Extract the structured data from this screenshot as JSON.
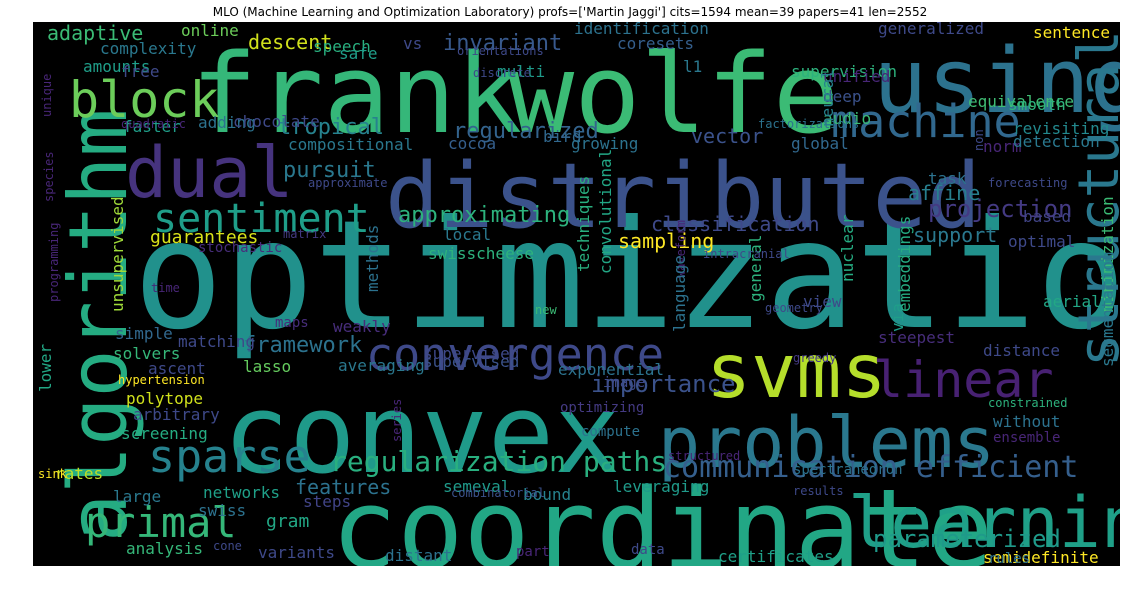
{
  "title": "MLO (Machine Learning and Optimization Laboratory) profs=['Martin Jaggi'] cits=1594 mean=39 papers=41 len=2552",
  "words": [
    {
      "t": "optimization",
      "c": "#21918c"
    },
    {
      "t": "convex",
      "c": "#1f9a8a"
    },
    {
      "t": "coordinate",
      "c": "#22a785"
    },
    {
      "t": "frank",
      "c": "#35b779"
    },
    {
      "t": "wolfe",
      "c": "#3bbb75"
    },
    {
      "t": "distributed",
      "c": "#3b528b"
    },
    {
      "t": "using",
      "c": "#2c728e"
    },
    {
      "t": "algorithm",
      "c": "#25ac82"
    },
    {
      "t": "svms",
      "c": "#b5de2b"
    },
    {
      "t": "dual",
      "c": "#46337e"
    },
    {
      "t": "problems",
      "c": "#2a788e"
    },
    {
      "t": "learning",
      "c": "#1fa088"
    },
    {
      "t": "structural",
      "c": "#2a788e"
    },
    {
      "t": "linear",
      "c": "#482173"
    },
    {
      "t": "convergence",
      "c": "#3e4989"
    },
    {
      "t": "machine",
      "c": "#31688e"
    },
    {
      "t": "block",
      "c": "#6ccd5a"
    },
    {
      "t": "sparse",
      "c": "#26828e"
    },
    {
      "t": "primal",
      "c": "#35b779"
    },
    {
      "t": "sentiment",
      "c": "#1f9e89"
    },
    {
      "t": "communication efficient",
      "c": "#355f8d"
    },
    {
      "t": "regularization paths",
      "c": "#29af7f"
    },
    {
      "t": "parameterized",
      "c": "#1f9a8a"
    },
    {
      "t": "importance",
      "c": "#3b528b"
    },
    {
      "t": "framework",
      "c": "#2c728e"
    },
    {
      "t": "approximating",
      "c": "#2db27d"
    },
    {
      "t": "projection",
      "c": "#443a83"
    },
    {
      "t": "regularized",
      "c": "#33638d"
    },
    {
      "t": "invariant",
      "c": "#38598c"
    },
    {
      "t": "tropical",
      "c": "#26828e"
    },
    {
      "t": "pursuit",
      "c": "#2a788e"
    },
    {
      "t": "features",
      "c": "#2c728e"
    },
    {
      "t": "sampling",
      "c": "#fde725"
    },
    {
      "t": "guarantees",
      "c": "#d8e219"
    },
    {
      "t": "classification",
      "c": "#3e4989"
    },
    {
      "t": "support",
      "c": "#2a788e"
    },
    {
      "t": "affine",
      "c": "#277f8e"
    },
    {
      "t": "vector",
      "c": "#3b528b"
    },
    {
      "t": "descent",
      "c": "#d0e11c"
    },
    {
      "t": "adaptive",
      "c": "#3bbb75"
    },
    {
      "t": "gram",
      "c": "#22a785"
    },
    {
      "t": "supervision",
      "c": "#2db27d"
    },
    {
      "t": "sentence",
      "c": "#fde725"
    },
    {
      "t": "revisiting",
      "c": "#23898e"
    },
    {
      "t": "equivalence",
      "c": "#3fbc73"
    },
    {
      "t": "leveraging",
      "c": "#1f9a8a"
    },
    {
      "t": "certificates",
      "c": "#1fa088"
    },
    {
      "t": "semidefinite",
      "c": "#fde725"
    },
    {
      "t": "exponential",
      "c": "#2c728e"
    },
    {
      "t": "averaging",
      "c": "#2a788e"
    },
    {
      "t": "supervised",
      "c": "#3b528b"
    },
    {
      "t": "polytope",
      "c": "#d0e11c"
    },
    {
      "t": "arbitrary",
      "c": "#3e4989"
    },
    {
      "t": "analysis",
      "c": "#35b779"
    },
    {
      "t": "variants",
      "c": "#3e4989"
    },
    {
      "t": "distant",
      "c": "#2c728e"
    },
    {
      "t": "rates",
      "c": "#bddf26"
    },
    {
      "t": "large",
      "c": "#2a788e"
    },
    {
      "t": "networks",
      "c": "#1fa088"
    },
    {
      "t": "steps",
      "c": "#414487"
    },
    {
      "t": "swiss",
      "c": "#2c728e"
    },
    {
      "t": "bound",
      "c": "#26828e"
    },
    {
      "t": "semeval",
      "c": "#1f9a8a"
    },
    {
      "t": "combinatorial",
      "c": "#3b528b"
    },
    {
      "t": "lasso",
      "c": "#65cb5e"
    },
    {
      "t": "solvers",
      "c": "#35b779"
    },
    {
      "t": "simple",
      "c": "#31688e"
    },
    {
      "t": "matching",
      "c": "#3e4989"
    },
    {
      "t": "ascent",
      "c": "#3e4989"
    },
    {
      "t": "lower",
      "c": "#22a785"
    },
    {
      "t": "screening",
      "c": "#25ac82"
    },
    {
      "t": "hypertension",
      "c": "#fde725"
    },
    {
      "t": "weakly",
      "c": "#472d7b"
    },
    {
      "t": "maps",
      "c": "#472d7b"
    },
    {
      "t": "time",
      "c": "#482677"
    },
    {
      "t": "programming",
      "c": "#482677"
    },
    {
      "t": "stochastic",
      "c": "#472d7b"
    },
    {
      "t": "matrix",
      "c": "#443a83"
    },
    {
      "t": "unsupervised",
      "c": "#a0da39"
    },
    {
      "t": "supervised",
      "c": "#3e4989"
    },
    {
      "t": "species",
      "c": "#482677"
    },
    {
      "t": "faster",
      "c": "#1f9e89"
    },
    {
      "t": "adding",
      "c": "#2c728e"
    },
    {
      "t": "chocolate",
      "c": "#3e4989"
    },
    {
      "t": "quadratic",
      "c": "#482677"
    },
    {
      "t": "unique",
      "c": "#482677"
    },
    {
      "t": "amounts",
      "c": "#1f9e89"
    },
    {
      "t": "free",
      "c": "#3e4989"
    },
    {
      "t": "complexity",
      "c": "#2a788e"
    },
    {
      "t": "online",
      "c": "#6ccd5a"
    },
    {
      "t": "speech",
      "c": "#29af7f"
    },
    {
      "t": "safe",
      "c": "#1f9e89"
    },
    {
      "t": "orientations",
      "c": "#3e4989"
    },
    {
      "t": "vs",
      "c": "#3e4989"
    },
    {
      "t": "identification",
      "c": "#2c728e"
    },
    {
      "t": "coresets",
      "c": "#355f8d"
    },
    {
      "t": "multi",
      "c": "#1f9a8a"
    },
    {
      "t": "l1",
      "c": "#2a788e"
    },
    {
      "t": "discrete",
      "c": "#3e4989"
    },
    {
      "t": "generalized",
      "c": "#3e4989"
    },
    {
      "t": "unified",
      "c": "#482677"
    },
    {
      "t": "deep",
      "c": "#3b528b"
    },
    {
      "t": "bird",
      "c": "#31688e"
    },
    {
      "t": "audio",
      "c": "#3bbb75"
    },
    {
      "t": "neural",
      "c": "#26828e"
    },
    {
      "t": "factorizations",
      "c": "#2c728e"
    },
    {
      "t": "cocoa",
      "c": "#355f8d"
    },
    {
      "t": "growing",
      "c": "#2c728e"
    },
    {
      "t": "global",
      "c": "#31688e"
    },
    {
      "t": "compositional",
      "c": "#2a788e"
    },
    {
      "t": "approximate",
      "c": "#3e4989"
    },
    {
      "t": "norm",
      "c": "#482677"
    },
    {
      "t": "non",
      "c": "#3e4989"
    },
    {
      "t": "smooth",
      "c": "#2db27d"
    },
    {
      "t": "detection",
      "c": "#2a788e"
    },
    {
      "t": "task",
      "c": "#2c728e"
    },
    {
      "t": "forecasting",
      "c": "#3e4989"
    },
    {
      "t": "based",
      "c": "#414487"
    },
    {
      "t": "local",
      "c": "#2a788e"
    },
    {
      "t": "swisscheese",
      "c": "#2db27d"
    },
    {
      "t": "convolutional",
      "c": "#22a785"
    },
    {
      "t": "techniques",
      "c": "#29af7f"
    },
    {
      "t": "methods",
      "c": "#2c728e"
    },
    {
      "t": "nuclear",
      "c": "#25ac82"
    },
    {
      "t": "general",
      "c": "#2db27d"
    },
    {
      "t": "waveform",
      "c": "#482677"
    },
    {
      "t": "intracranial",
      "c": "#3e4989"
    },
    {
      "t": "optimal",
      "c": "#3e4989"
    },
    {
      "t": "minimization",
      "c": "#3bbb75"
    },
    {
      "t": "segmentation",
      "c": "#2a788e"
    },
    {
      "t": "aerial",
      "c": "#22a785"
    },
    {
      "t": "geometry",
      "c": "#3e4989"
    },
    {
      "t": "view",
      "c": "#3e4989"
    },
    {
      "t": "via",
      "c": "#1f9e89"
    },
    {
      "t": "embeddings",
      "c": "#25ac82"
    },
    {
      "t": "language",
      "c": "#2c728e"
    },
    {
      "t": "new",
      "c": "#3bbb75"
    },
    {
      "t": "steepest",
      "c": "#472d7b"
    },
    {
      "t": "distance",
      "c": "#3e4989"
    },
    {
      "t": "greedy",
      "c": "#443a83"
    },
    {
      "t": "constrained",
      "c": "#2db27d"
    },
    {
      "t": "without",
      "c": "#2c728e"
    },
    {
      "t": "ensemble",
      "c": "#482677"
    },
    {
      "t": "image",
      "c": "#3e4989"
    },
    {
      "t": "optimizing",
      "c": "#443a83"
    },
    {
      "t": "compute",
      "c": "#2c728e"
    },
    {
      "t": "structured",
      "c": "#482677"
    },
    {
      "t": "series",
      "c": "#482677"
    },
    {
      "t": "spectrahedron",
      "c": "#2c728e"
    },
    {
      "t": "results",
      "c": "#3e4989"
    },
    {
      "t": "part",
      "c": "#482677"
    },
    {
      "t": "data",
      "c": "#3e4989"
    },
    {
      "t": "rules",
      "c": "#2c728e"
    },
    {
      "t": "cone",
      "c": "#3e4989"
    },
    {
      "t": "sink",
      "c": "#fde725"
    }
  ]
}
